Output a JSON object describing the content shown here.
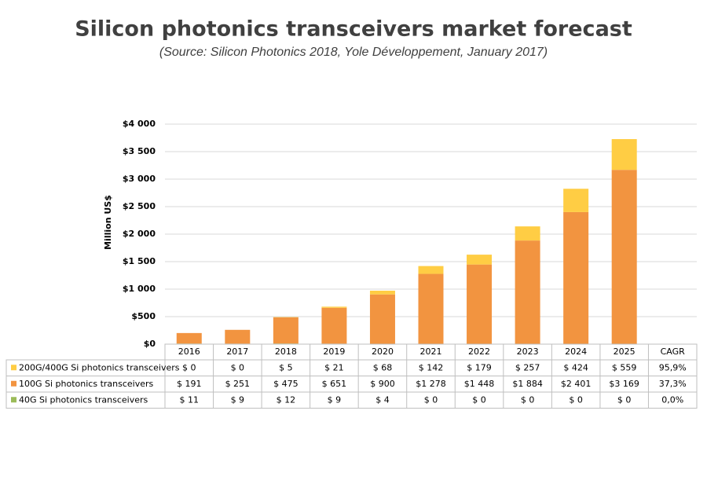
{
  "chart_data": {
    "type": "stacked-bar",
    "title": "Silicon photonics transceivers market forecast",
    "subtitle": "(Source: Silicon Photonics 2018, Yole Développement, January 2017)",
    "y_label": "Million US$",
    "categories": [
      "2016",
      "2017",
      "2018",
      "2019",
      "2020",
      "2021",
      "2022",
      "2023",
      "2024",
      "2025"
    ],
    "cagr_header": "CAGR",
    "series": [
      {
        "name": "40G Si photonics transceivers",
        "color": "#9bbb59",
        "values": [
          11,
          9,
          12,
          9,
          4,
          0,
          0,
          0,
          0,
          0
        ],
        "value_labels": [
          "$ 11",
          "$ 9",
          "$ 12",
          "$ 9",
          "$ 4",
          "$ 0",
          "$ 0",
          "$ 0",
          "$ 0",
          "$ 0"
        ],
        "cagr": "0,0%"
      },
      {
        "name": "100G Si photonics transceivers",
        "color": "#f29440",
        "values": [
          191,
          251,
          475,
          651,
          900,
          1278,
          1448,
          1884,
          2401,
          3169
        ],
        "value_labels": [
          "$ 191",
          "$ 251",
          "$ 475",
          "$ 651",
          "$ 900",
          "$1 278",
          "$1 448",
          "$1 884",
          "$2 401",
          "$3 169"
        ],
        "cagr": "37,3%"
      },
      {
        "name": "200G/400G Si photonics transceivers",
        "color": "#ffcd44",
        "values": [
          0,
          0,
          5,
          21,
          68,
          142,
          179,
          257,
          424,
          559
        ],
        "value_labels": [
          "$ 0",
          "$ 0",
          "$ 5",
          "$ 21",
          "$ 68",
          "$ 142",
          "$ 179",
          "$ 257",
          "$ 424",
          "$ 559"
        ],
        "cagr": "95,9%"
      }
    ],
    "ylim": [
      0,
      4000
    ],
    "yticks": [
      {
        "value": 0,
        "label": "$0"
      },
      {
        "value": 500,
        "label": "$500"
      },
      {
        "value": 1000,
        "label": "$1 000"
      },
      {
        "value": 1500,
        "label": "$1 500"
      },
      {
        "value": 2000,
        "label": "$2 000"
      },
      {
        "value": 2500,
        "label": "$2 500"
      },
      {
        "value": 3000,
        "label": "$3 000"
      },
      {
        "value": 3500,
        "label": "$3 500"
      },
      {
        "value": 4000,
        "label": "$4 000"
      }
    ],
    "grid": true
  }
}
